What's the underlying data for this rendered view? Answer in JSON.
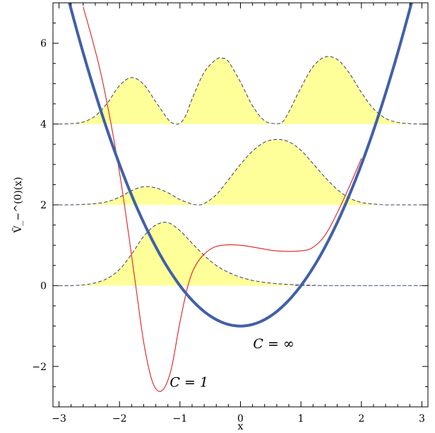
{
  "chart_data": {
    "type": "line",
    "xlabel": "x",
    "ylabel": "Ṽ_−^(0)(x)",
    "xlim": [
      -3.1,
      3.1
    ],
    "ylim": [
      -3.0,
      7.0
    ],
    "xticks": [
      -3,
      -2,
      -1,
      0,
      1,
      2,
      3
    ],
    "yticks": [
      -2,
      0,
      2,
      4,
      6
    ],
    "xtick_labels": [
      "−3",
      "−2",
      "−1",
      "0",
      "1",
      "2",
      "3"
    ],
    "ytick_labels": [
      "−2",
      "0",
      "2",
      "4",
      "6"
    ],
    "grid": false,
    "annotations": [
      {
        "text": "C = ∞",
        "x": 0.55,
        "y": -1.55
      },
      {
        "text": "C = 1",
        "x": -0.85,
        "y": -2.5
      }
    ],
    "series": [
      {
        "style": "thick-blue",
        "color": "#4060a8",
        "function": "x^2 - 1",
        "x": [
          -3.0,
          -2.5,
          -2.0,
          -1.5,
          -1.0,
          -0.5,
          0.0,
          0.5,
          1.0,
          1.5,
          2.0,
          2.5,
          3.0
        ],
        "y": [
          8.0,
          5.25,
          3.0,
          1.25,
          0.0,
          -0.75,
          -1.0,
          -0.75,
          0.0,
          1.25,
          3.0,
          5.25,
          8.0
        ]
      },
      {
        "style": "thin-red",
        "color": "#e02020",
        "x": [
          -2.6,
          -2.3,
          -2.0,
          -1.75,
          -1.6,
          -1.45,
          -1.3,
          -1.15,
          -1.0,
          -0.85,
          -0.7,
          -0.5,
          -0.3,
          0.0,
          0.3,
          0.6,
          1.0,
          1.2,
          1.4,
          1.6,
          1.8,
          2.0
        ],
        "y": [
          6.9,
          5.2,
          2.8,
          0.2,
          -1.4,
          -2.4,
          -2.6,
          -2.1,
          -0.9,
          0.1,
          0.6,
          0.9,
          1.0,
          1.0,
          0.93,
          0.86,
          0.86,
          0.95,
          1.25,
          1.8,
          2.45,
          3.15
        ]
      }
    ],
    "filled_profiles": [
      {
        "baseline": 0,
        "x": [
          -3.0,
          -2.8,
          -2.6,
          -2.4,
          -2.2,
          -2.0,
          -1.8,
          -1.6,
          -1.4,
          -1.2,
          -1.0,
          -0.8,
          -0.6,
          -0.4,
          -0.2,
          0.0,
          0.2,
          0.4,
          0.6,
          0.8,
          1.0,
          1.2,
          1.4,
          1.6,
          1.8,
          2.0,
          2.2,
          2.4,
          2.6,
          2.8,
          3.0
        ],
        "y": [
          0.0,
          0.0,
          0.02,
          0.07,
          0.18,
          0.4,
          0.78,
          1.22,
          1.5,
          1.56,
          1.36,
          1.05,
          0.75,
          0.5,
          0.33,
          0.21,
          0.13,
          0.08,
          0.05,
          0.03,
          0.02,
          0.01,
          0.0,
          0.0,
          0.0,
          0.0,
          0.0,
          0.0,
          0.0,
          0.0,
          0.0
        ]
      },
      {
        "baseline": 2,
        "x": [
          -3.0,
          -2.8,
          -2.6,
          -2.4,
          -2.2,
          -2.0,
          -1.8,
          -1.6,
          -1.4,
          -1.2,
          -1.0,
          -0.8,
          -0.7,
          -0.6,
          -0.4,
          -0.2,
          0.0,
          0.2,
          0.4,
          0.6,
          0.8,
          1.0,
          1.2,
          1.4,
          1.6,
          1.8,
          2.0,
          2.2,
          2.4,
          2.6,
          2.8,
          3.0
        ],
        "y": [
          2.0,
          2.0,
          2.01,
          2.03,
          2.08,
          2.19,
          2.35,
          2.45,
          2.42,
          2.3,
          2.13,
          2.02,
          2.0,
          2.03,
          2.25,
          2.62,
          3.0,
          3.33,
          3.55,
          3.62,
          3.56,
          3.35,
          3.02,
          2.68,
          2.38,
          2.17,
          2.06,
          2.02,
          2.0,
          2.0,
          2.0,
          2.0
        ]
      },
      {
        "baseline": 4,
        "x": [
          -3.0,
          -2.8,
          -2.6,
          -2.4,
          -2.2,
          -2.0,
          -1.8,
          -1.6,
          -1.4,
          -1.2,
          -1.1,
          -1.0,
          -0.9,
          -0.8,
          -0.6,
          -0.4,
          -0.3,
          -0.2,
          0.0,
          0.2,
          0.4,
          0.6,
          0.7,
          0.8,
          1.0,
          1.2,
          1.4,
          1.6,
          1.8,
          2.0,
          2.2,
          2.4,
          2.6,
          2.8,
          3.0
        ],
        "y": [
          4.0,
          4.01,
          4.05,
          4.2,
          4.52,
          4.95,
          5.15,
          4.98,
          4.55,
          4.12,
          4.01,
          4.02,
          4.22,
          4.62,
          5.28,
          5.6,
          5.63,
          5.55,
          5.04,
          4.45,
          4.08,
          4.01,
          4.06,
          4.3,
          4.9,
          5.42,
          5.66,
          5.6,
          5.26,
          4.78,
          4.38,
          4.14,
          4.04,
          4.01,
          4.0
        ]
      }
    ]
  }
}
